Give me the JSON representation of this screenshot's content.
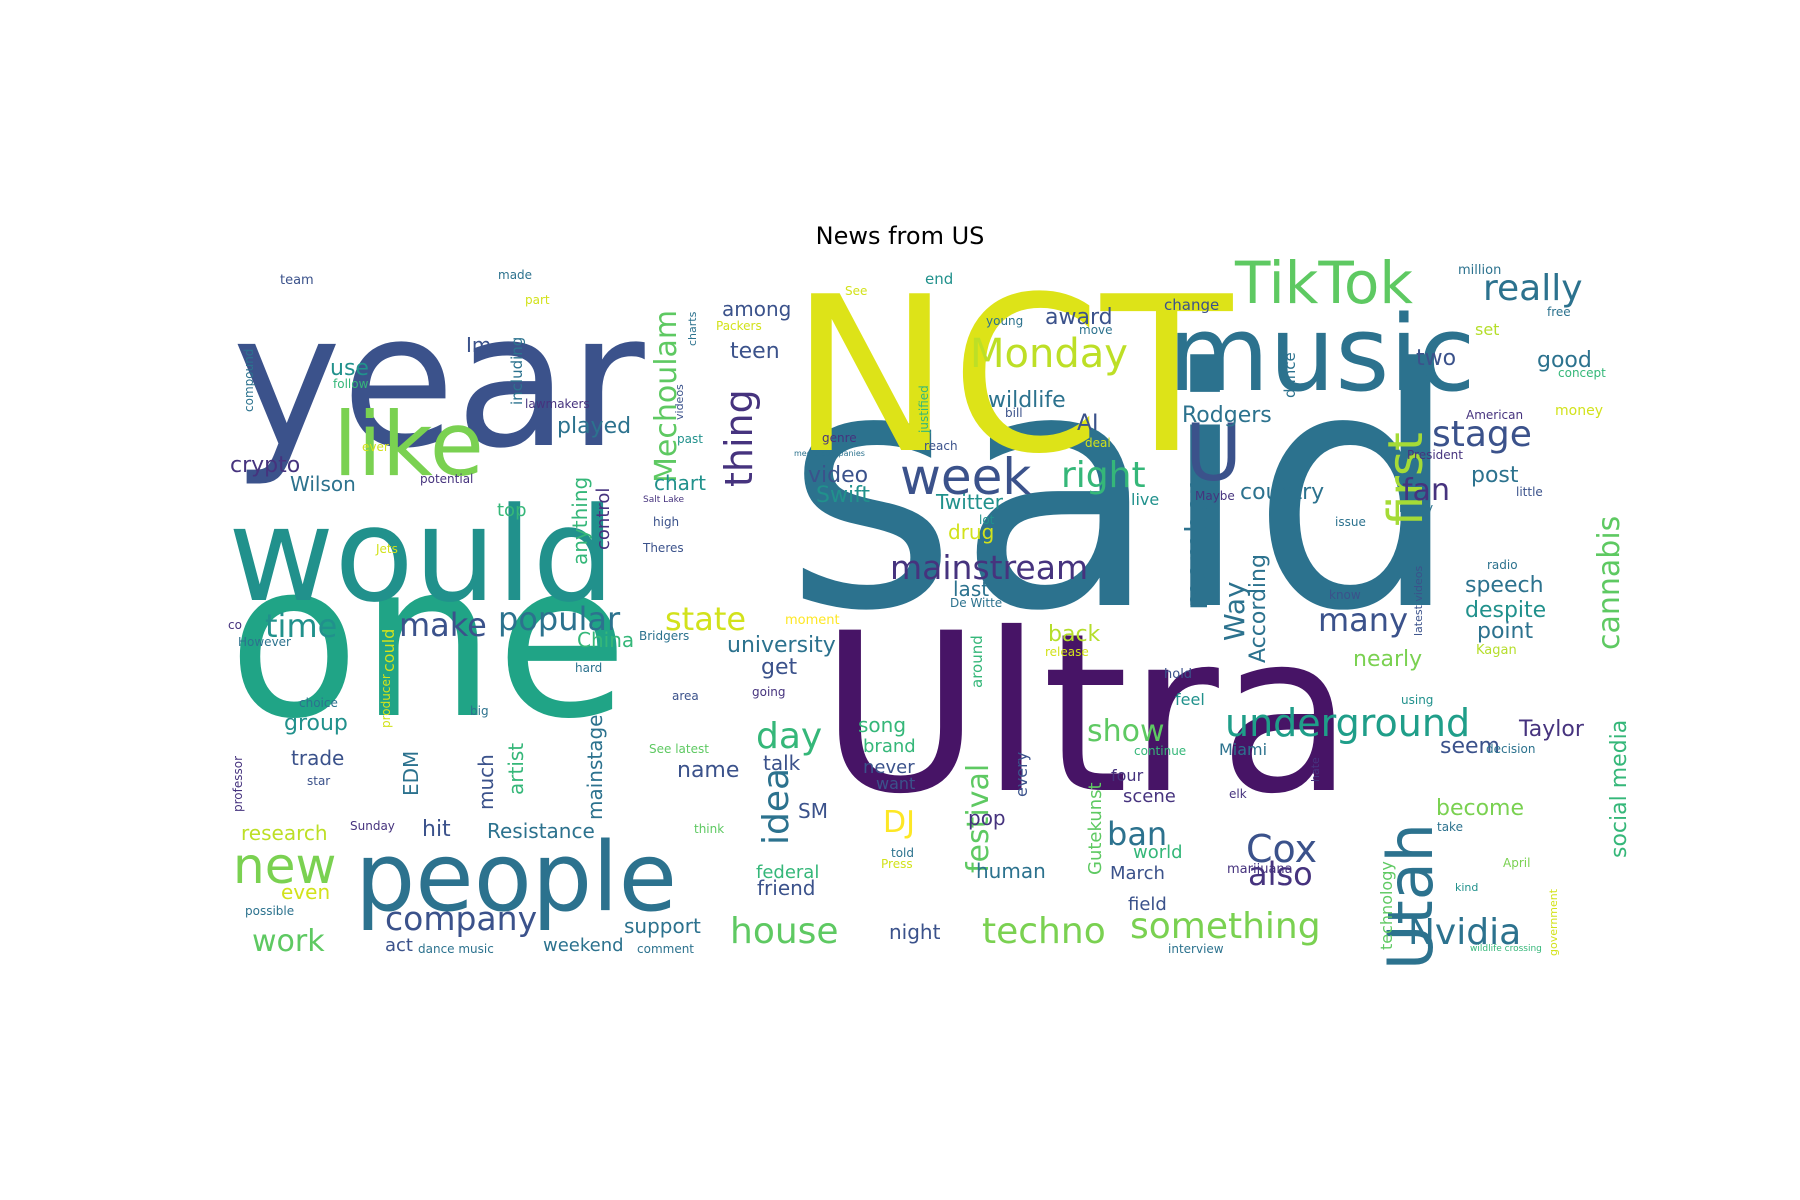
{
  "title": "News from US",
  "words": [
    {
      "text": "said",
      "color": "#2c728e"
    },
    {
      "text": "Ultra",
      "color": "#471466"
    },
    {
      "text": "one",
      "color": "#20a486"
    },
    {
      "text": "NCT",
      "color": "#dde318"
    },
    {
      "text": "year",
      "color": "#3b528b"
    },
    {
      "text": "would",
      "color": "#21918c"
    },
    {
      "text": "music",
      "color": "#2c728e"
    },
    {
      "text": "people",
      "color": "#2c728e"
    },
    {
      "text": "like",
      "color": "#7ad151"
    },
    {
      "text": "TikTok",
      "color": "#5ec962"
    },
    {
      "text": "U",
      "color": "#3b528b"
    },
    {
      "text": "Utah",
      "color": "#2c728e"
    },
    {
      "text": "new",
      "color": "#7ad151"
    },
    {
      "text": "week",
      "color": "#3b528b"
    },
    {
      "text": "underground",
      "color": "#1f9e89"
    },
    {
      "text": "first",
      "color": "#a5db36"
    },
    {
      "text": "Monday",
      "color": "#bddf26"
    },
    {
      "text": "really",
      "color": "#2c728e"
    },
    {
      "text": "stage",
      "color": "#3b528b"
    },
    {
      "text": "techno",
      "color": "#7ad151"
    },
    {
      "text": "something",
      "color": "#7ad151"
    },
    {
      "text": "Nvidia",
      "color": "#2c728e"
    },
    {
      "text": "house",
      "color": "#5ec962"
    },
    {
      "text": "Cox",
      "color": "#3b528b"
    },
    {
      "text": "company",
      "color": "#3b528b"
    },
    {
      "text": "mainstream",
      "color": "#46337e"
    },
    {
      "text": "cannabis",
      "color": "#5ec962"
    },
    {
      "text": "festival",
      "color": "#5ec962"
    },
    {
      "text": "Mechoulam",
      "color": "#5ec962"
    },
    {
      "text": "thing",
      "color": "#46337e"
    },
    {
      "text": "right",
      "color": "#35b779"
    },
    {
      "text": "popular",
      "color": "#2c728e"
    },
    {
      "text": "state",
      "color": "#d2e21b"
    },
    {
      "text": "make",
      "color": "#3b528b"
    },
    {
      "text": "time",
      "color": "#21918c"
    },
    {
      "text": "member",
      "color": "#2c728e"
    },
    {
      "text": "many",
      "color": "#3b528b"
    },
    {
      "text": "fan",
      "color": "#46337e"
    },
    {
      "text": "day",
      "color": "#35b779"
    },
    {
      "text": "idea",
      "color": "#2c728e"
    },
    {
      "text": "also",
      "color": "#46337e"
    },
    {
      "text": "ban",
      "color": "#2c728e"
    },
    {
      "text": "work",
      "color": "#5ec962"
    },
    {
      "text": "show",
      "color": "#5ec962"
    },
    {
      "text": "DJ",
      "color": "#fde725"
    },
    {
      "text": "Way",
      "color": "#2c728e"
    },
    {
      "text": "wildlife",
      "color": "#2c728e"
    },
    {
      "text": "award",
      "color": "#3b528b"
    },
    {
      "text": "AI",
      "color": "#3b528b"
    },
    {
      "text": "Rodgers",
      "color": "#2c728e"
    },
    {
      "text": "two",
      "color": "#3b528b"
    },
    {
      "text": "good",
      "color": "#2c728e"
    },
    {
      "text": "post",
      "color": "#2c728e"
    },
    {
      "text": "social media",
      "color": "#35b779"
    },
    {
      "text": "Taylor",
      "color": "#46337e"
    },
    {
      "text": "seem",
      "color": "#3b528b"
    },
    {
      "text": "become",
      "color": "#7ad151"
    },
    {
      "text": "speech",
      "color": "#2c728e"
    },
    {
      "text": "despite",
      "color": "#21918c"
    },
    {
      "text": "point",
      "color": "#2c728e"
    },
    {
      "text": "nearly",
      "color": "#7ad151"
    },
    {
      "text": "country",
      "color": "#2c728e"
    },
    {
      "text": "According",
      "color": "#2c728e"
    },
    {
      "text": "video",
      "color": "#3b528b"
    },
    {
      "text": "Swift",
      "color": "#21918c"
    },
    {
      "text": "Twitter",
      "color": "#21918c"
    },
    {
      "text": "drug",
      "color": "#d2e21b"
    },
    {
      "text": "last",
      "color": "#2c728e"
    },
    {
      "text": "back",
      "color": "#b5de2b"
    },
    {
      "text": "university",
      "color": "#2c728e"
    },
    {
      "text": "get",
      "color": "#3b528b"
    },
    {
      "text": "China",
      "color": "#35b779"
    },
    {
      "text": "played",
      "color": "#2c728e"
    },
    {
      "text": "use",
      "color": "#21918c"
    },
    {
      "text": "Im",
      "color": "#3b528b"
    },
    {
      "text": "teen",
      "color": "#3b528b"
    },
    {
      "text": "among",
      "color": "#3b528b"
    },
    {
      "text": "crypto",
      "color": "#46337e"
    },
    {
      "text": "Wilson",
      "color": "#2c728e"
    },
    {
      "text": "chart",
      "color": "#21918c"
    },
    {
      "text": "top",
      "color": "#35b779"
    },
    {
      "text": "anything",
      "color": "#35b779"
    },
    {
      "text": "control",
      "color": "#46337e"
    },
    {
      "text": "group",
      "color": "#21918c"
    },
    {
      "text": "trade",
      "color": "#3b528b"
    },
    {
      "text": "artist",
      "color": "#35b779"
    },
    {
      "text": "much",
      "color": "#3b528b"
    },
    {
      "text": "EDM",
      "color": "#2c728e"
    },
    {
      "text": "mainstage",
      "color": "#2c728e"
    },
    {
      "text": "name",
      "color": "#3b528b"
    },
    {
      "text": "talk",
      "color": "#3b528b"
    },
    {
      "text": "hit",
      "color": "#3b528b"
    },
    {
      "text": "Resistance",
      "color": "#2c728e"
    },
    {
      "text": "research",
      "color": "#bddf26"
    },
    {
      "text": "even",
      "color": "#d2e21b"
    },
    {
      "text": "SM",
      "color": "#3b528b"
    },
    {
      "text": "song",
      "color": "#35b779"
    },
    {
      "text": "brand",
      "color": "#35b779"
    },
    {
      "text": "never",
      "color": "#3b528b"
    },
    {
      "text": "want",
      "color": "#3b528b"
    },
    {
      "text": "pop",
      "color": "#46337e"
    },
    {
      "text": "human",
      "color": "#2c728e"
    },
    {
      "text": "support",
      "color": "#2c728e"
    },
    {
      "text": "friend",
      "color": "#3b528b"
    },
    {
      "text": "federal",
      "color": "#35b779"
    },
    {
      "text": "night",
      "color": "#3b528b"
    },
    {
      "text": "weekend",
      "color": "#2c728e"
    },
    {
      "text": "act",
      "color": "#3b528b"
    },
    {
      "text": "Gutekunst",
      "color": "#5ec962"
    },
    {
      "text": "world",
      "color": "#35b779"
    },
    {
      "text": "March",
      "color": "#3b528b"
    },
    {
      "text": "field",
      "color": "#3b528b"
    },
    {
      "text": "scene",
      "color": "#46337e"
    },
    {
      "text": "live",
      "color": "#21918c"
    },
    {
      "text": "feel",
      "color": "#21918c"
    },
    {
      "text": "Miami",
      "color": "#2c728e"
    },
    {
      "text": "technology",
      "color": "#5ec962"
    },
    {
      "text": "every",
      "color": "#3b528b"
    },
    {
      "text": "four",
      "color": "#46337e"
    },
    {
      "text": "could",
      "color": "#d2e21b"
    },
    {
      "text": "including",
      "color": "#2c728e"
    },
    {
      "text": "dance",
      "color": "#2c728e"
    },
    {
      "text": "change",
      "color": "#3b528b"
    },
    {
      "text": "end",
      "color": "#21918c"
    },
    {
      "text": "marijuana",
      "color": "#46337e"
    },
    {
      "text": "around",
      "color": "#35b779"
    },
    {
      "text": "moment",
      "color": "#fde725"
    },
    {
      "text": "million",
      "color": "#2c728e"
    },
    {
      "text": "money",
      "color": "#d2e21b"
    },
    {
      "text": "set",
      "color": "#b5de2b"
    },
    {
      "text": "free",
      "color": "#2c728e"
    },
    {
      "text": "concept",
      "color": "#35b779"
    },
    {
      "text": "American",
      "color": "#46337e"
    },
    {
      "text": "President",
      "color": "#46337e"
    },
    {
      "text": "little",
      "color": "#3b528b"
    },
    {
      "text": "issue",
      "color": "#2c728e"
    },
    {
      "text": "ready",
      "color": "#2c728e"
    },
    {
      "text": "latest videos",
      "color": "#3b528b"
    },
    {
      "text": "know",
      "color": "#3b528b"
    },
    {
      "text": "radio",
      "color": "#2c728e"
    },
    {
      "text": "Kagan",
      "color": "#b5de2b"
    },
    {
      "text": "release",
      "color": "#d2e21b"
    },
    {
      "text": "hold",
      "color": "#3b528b"
    },
    {
      "text": "using",
      "color": "#21918c"
    },
    {
      "text": "decision",
      "color": "#2c728e"
    },
    {
      "text": "continue",
      "color": "#35b779"
    },
    {
      "text": "hate",
      "color": "#46337e"
    },
    {
      "text": "elk",
      "color": "#46337e"
    },
    {
      "text": "take",
      "color": "#2c728e"
    },
    {
      "text": "kind",
      "color": "#21918c"
    },
    {
      "text": "April",
      "color": "#7ad151"
    },
    {
      "text": "government",
      "color": "#d2e21b"
    },
    {
      "text": "interview",
      "color": "#2c728e"
    },
    {
      "text": "wildlife crossing",
      "color": "#35b779"
    },
    {
      "text": "told",
      "color": "#2c728e"
    },
    {
      "text": "Press",
      "color": "#d2e21b"
    },
    {
      "text": "think",
      "color": "#5ec962"
    },
    {
      "text": "comment",
      "color": "#2c728e"
    },
    {
      "text": "dance music",
      "color": "#2c728e"
    },
    {
      "text": "Sunday",
      "color": "#46337e"
    },
    {
      "text": "See latest",
      "color": "#5ec962"
    },
    {
      "text": "area",
      "color": "#3b528b"
    },
    {
      "text": "big",
      "color": "#2c728e"
    },
    {
      "text": "producer",
      "color": "#d2e21b"
    },
    {
      "text": "going",
      "color": "#46337e"
    },
    {
      "text": "hard",
      "color": "#2c728e"
    },
    {
      "text": "choice",
      "color": "#2c728e"
    },
    {
      "text": "star",
      "color": "#3b528b"
    },
    {
      "text": "possible",
      "color": "#2c728e"
    },
    {
      "text": "professor",
      "color": "#46337e"
    },
    {
      "text": "co",
      "color": "#46337e"
    },
    {
      "text": "However",
      "color": "#2c728e"
    },
    {
      "text": "Bridgers",
      "color": "#2c728e"
    },
    {
      "text": "De Witte",
      "color": "#2c728e"
    },
    {
      "text": "Theres",
      "color": "#3b528b"
    },
    {
      "text": "high",
      "color": "#3b528b"
    },
    {
      "text": "Salt Lake",
      "color": "#46337e"
    },
    {
      "text": "Jets",
      "color": "#d2e21b"
    },
    {
      "text": "potential",
      "color": "#46337e"
    },
    {
      "text": "ever",
      "color": "#d2e21b"
    },
    {
      "text": "past",
      "color": "#21918c"
    },
    {
      "text": "genre",
      "color": "#46337e"
    },
    {
      "text": "media companies",
      "color": "#2c728e"
    },
    {
      "text": "reach",
      "color": "#3b528b"
    },
    {
      "text": "deal",
      "color": "#d2e21b"
    },
    {
      "text": "lot",
      "color": "#21918c"
    },
    {
      "text": "Maybe",
      "color": "#46337e"
    },
    {
      "text": "bill",
      "color": "#3b528b"
    },
    {
      "text": "justified",
      "color": "#35b779"
    },
    {
      "text": "young",
      "color": "#2c728e"
    },
    {
      "text": "move",
      "color": "#2c728e"
    },
    {
      "text": "See",
      "color": "#d2e21b"
    },
    {
      "text": "Packers",
      "color": "#d2e21b"
    },
    {
      "text": "part",
      "color": "#d2e21b"
    },
    {
      "text": "made",
      "color": "#2c728e"
    },
    {
      "text": "charts",
      "color": "#2c728e"
    },
    {
      "text": "videos",
      "color": "#3b528b"
    },
    {
      "text": "lawmakers",
      "color": "#46337e"
    },
    {
      "text": "follow",
      "color": "#35b779"
    },
    {
      "text": "compound",
      "color": "#2c728e"
    },
    {
      "text": "team",
      "color": "#3b528b"
    }
  ]
}
